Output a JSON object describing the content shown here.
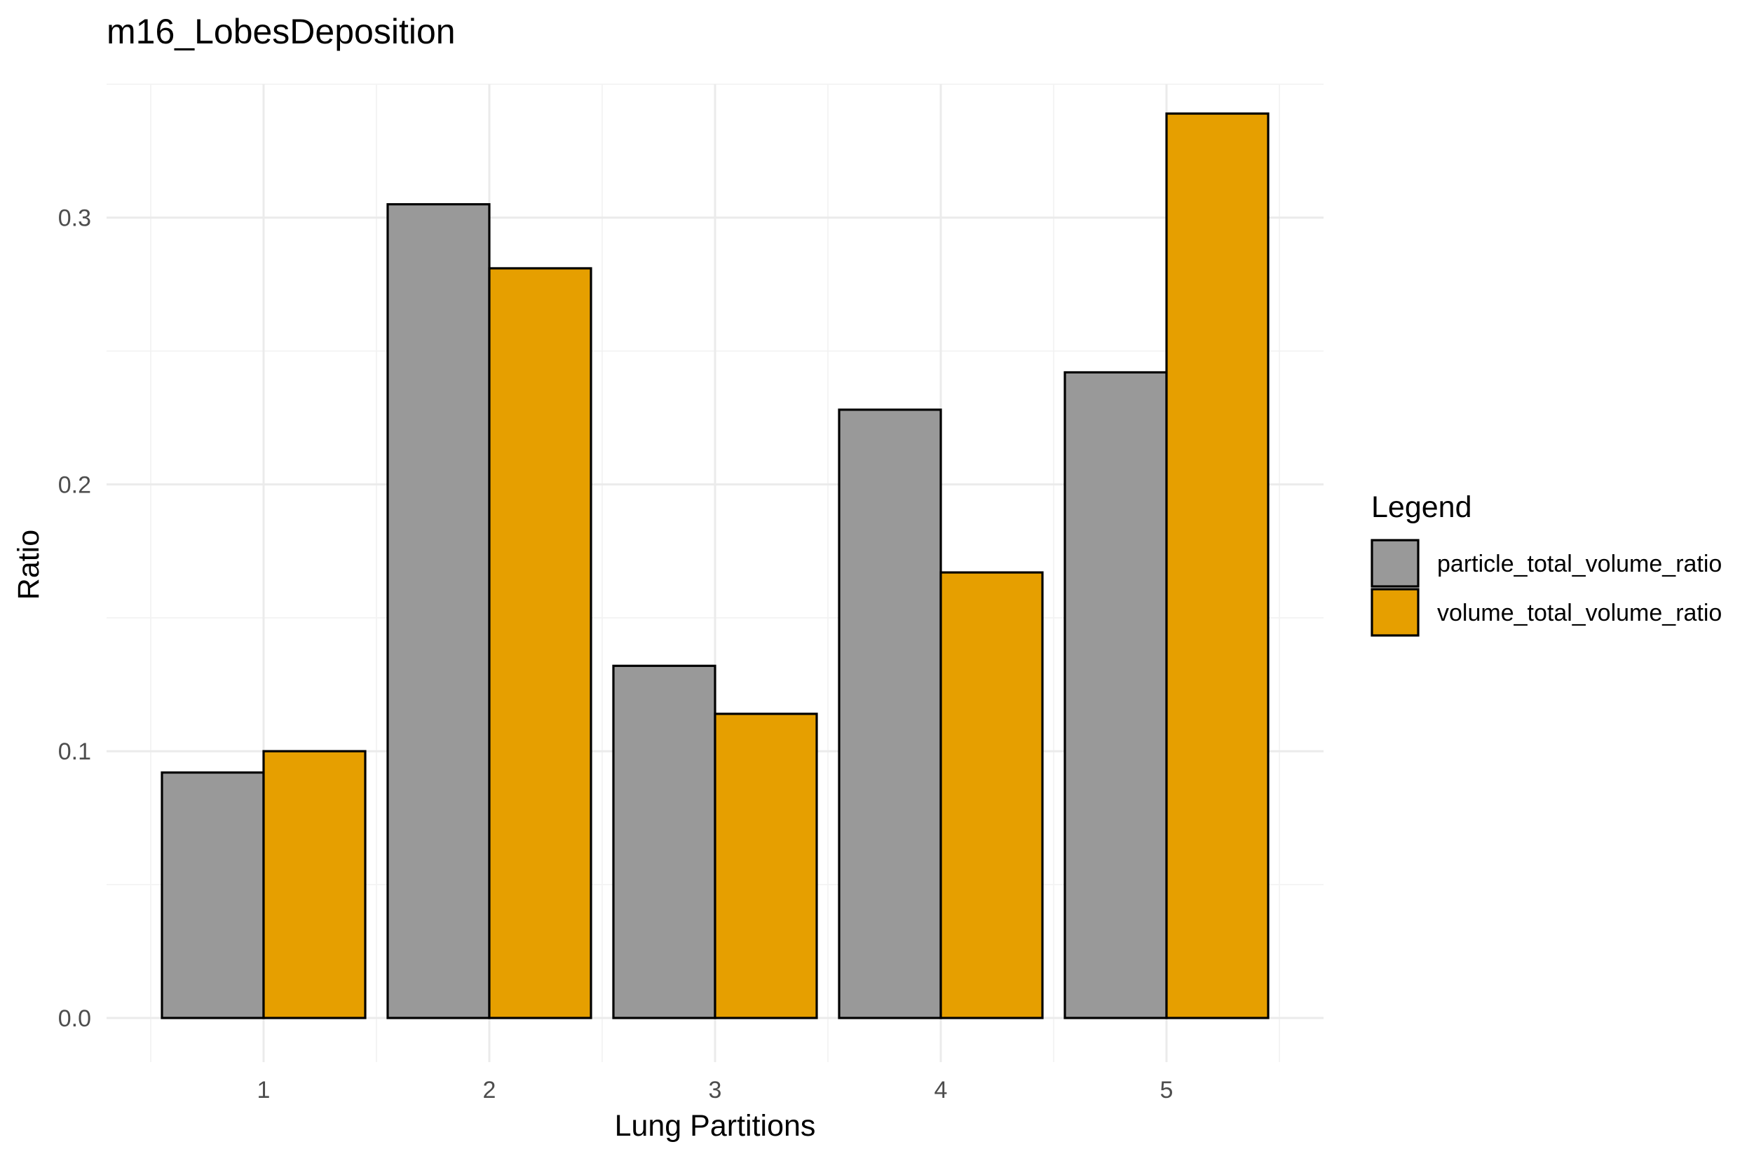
{
  "chart_data": {
    "type": "bar",
    "title": "m16_LobesDeposition",
    "xlabel": "Lung Partitions",
    "ylabel": "Ratio",
    "categories": [
      "1",
      "2",
      "3",
      "4",
      "5"
    ],
    "series": [
      {
        "name": "particle_total_volume_ratio",
        "color": "#999999",
        "values": [
          0.092,
          0.305,
          0.132,
          0.228,
          0.242
        ]
      },
      {
        "name": "volume_total_volume_ratio",
        "color": "#E69F00",
        "values": [
          0.1,
          0.281,
          0.114,
          0.167,
          0.339
        ]
      }
    ],
    "yticks": [
      "0.0",
      "0.1",
      "0.2",
      "0.3"
    ],
    "ylim": [
      -0.0169,
      0.35
    ],
    "grid": true,
    "legend": {
      "title": "Legend",
      "position": "right"
    }
  }
}
